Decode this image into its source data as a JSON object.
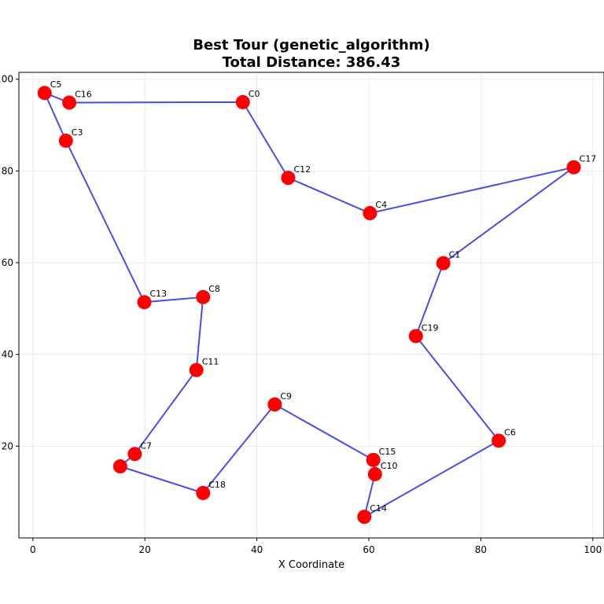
{
  "chart_data": {
    "type": "scatter",
    "title_line1": "Best Tour (genetic_algorithm)",
    "title_line2": "Total Distance: 386.43",
    "xlabel": "X Coordinate",
    "ylabel": "",
    "xlim": [
      -2.5,
      102
    ],
    "ylim": [
      0,
      101.5
    ],
    "xticks": [
      0,
      20,
      40,
      60,
      80,
      100
    ],
    "xtick_labels": [
      "0",
      "20",
      "40",
      "60",
      "80",
      "100"
    ],
    "yticks": [
      20,
      40,
      60,
      80,
      100
    ],
    "ytick_labels": [
      "20",
      "40",
      "60",
      "80",
      "100"
    ],
    "grid": true,
    "colors": {
      "route": "#4b4bea",
      "city": "#ff0000"
    },
    "cities": [
      {
        "name": "C0",
        "x": 37.5,
        "y": 95.0
      },
      {
        "name": "C1",
        "x": 73.3,
        "y": 59.9
      },
      {
        "name": "C3",
        "x": 5.9,
        "y": 86.6
      },
      {
        "name": "C4",
        "x": 60.2,
        "y": 70.8
      },
      {
        "name": "C5",
        "x": 2.1,
        "y": 97.0
      },
      {
        "name": "C6",
        "x": 83.2,
        "y": 21.2
      },
      {
        "name": "C7",
        "x": 18.2,
        "y": 18.3
      },
      {
        "name": "C8",
        "x": 30.4,
        "y": 52.5
      },
      {
        "name": "C9",
        "x": 43.2,
        "y": 29.1
      },
      {
        "name": "C10",
        "x": 61.1,
        "y": 13.9
      },
      {
        "name": "C11",
        "x": 29.2,
        "y": 36.6
      },
      {
        "name": "C12",
        "x": 45.6,
        "y": 78.5
      },
      {
        "name": "C13",
        "x": 19.9,
        "y": 51.4
      },
      {
        "name": "C14",
        "x": 59.2,
        "y": 4.6
      },
      {
        "name": "C15",
        "x": 60.8,
        "y": 17.0
      },
      {
        "name": "C16",
        "x": 6.5,
        "y": 94.9
      },
      {
        "name": "C17",
        "x": 96.6,
        "y": 80.8
      },
      {
        "name": "C18",
        "x": 30.4,
        "y": 9.8
      },
      {
        "name": "C19",
        "x": 68.4,
        "y": 44.0
      },
      {
        "name": "",
        "x": 15.6,
        "y": 15.6
      }
    ],
    "tour_order": [
      "C5",
      "C16",
      "C0",
      "C12",
      "C4",
      "C17",
      "C1",
      "C19",
      "C6",
      "C14",
      "C10",
      "C15",
      "C9",
      "C18",
      "",
      "C7",
      "C11",
      "C8",
      "C13",
      "C3",
      "C5"
    ]
  }
}
